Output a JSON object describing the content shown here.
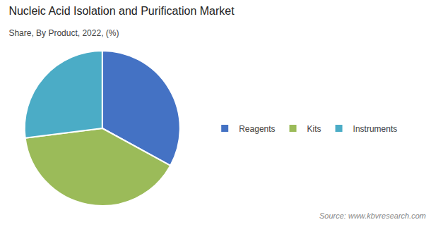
{
  "chart_data": {
    "type": "pie",
    "title": "Nucleic Acid Isolation and Purification Market",
    "subtitle": "Share, By Product, 2022, (%)",
    "categories": [
      "Reagents",
      "Kits",
      "Instruments"
    ],
    "values": [
      33,
      40,
      27
    ],
    "colors": [
      "#4472C4",
      "#9BBB59",
      "#4BACC6"
    ],
    "legend": "right",
    "annotations": [
      "Source: www.kbvresearch.com"
    ]
  }
}
